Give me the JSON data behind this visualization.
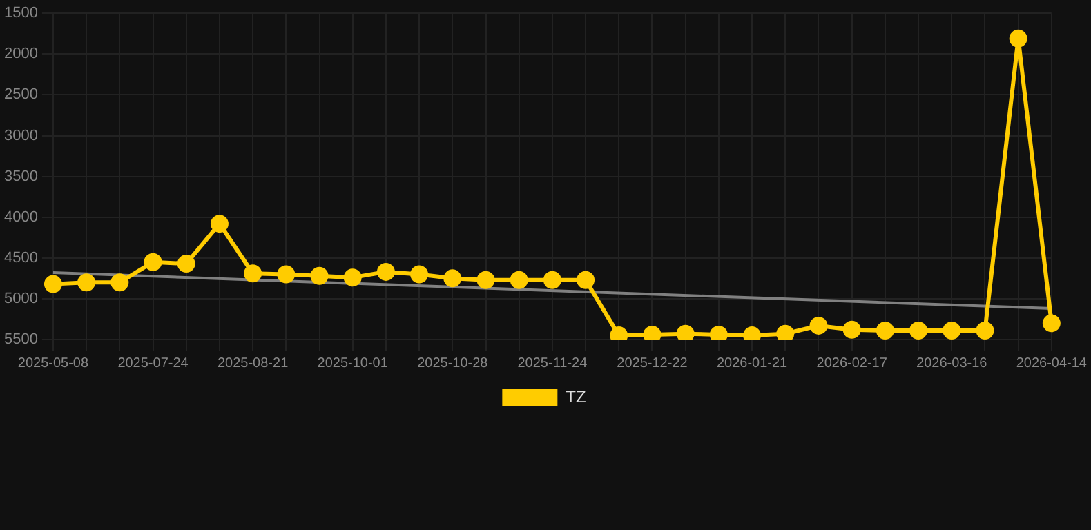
{
  "chart_data": {
    "type": "line",
    "categories": [
      "2025-05-08",
      null,
      null,
      "2025-07-24",
      null,
      null,
      "2025-08-21",
      null,
      null,
      "2025-10-01",
      null,
      null,
      "2025-10-28",
      null,
      null,
      "2025-11-24",
      null,
      null,
      "2025-12-22",
      null,
      null,
      "2026-01-21",
      null,
      null,
      "2026-02-17",
      null,
      null,
      "2026-03-16",
      null,
      null,
      "2026-04-14"
    ],
    "series": [
      {
        "name": "TZ",
        "color": "#ffcc00",
        "values": [
          4820,
          4800,
          4800,
          4550,
          4570,
          4080,
          4690,
          4700,
          4720,
          4740,
          4670,
          4700,
          4750,
          4770,
          4770,
          4770,
          4770,
          5450,
          5440,
          5430,
          5440,
          5450,
          5430,
          5330,
          5380,
          5390,
          5390,
          5390,
          5390,
          1810,
          5300
        ],
        "marker": "circle"
      },
      {
        "color": "#808080",
        "marker": "none",
        "values": [
          4680,
          null,
          null,
          null,
          null,
          null,
          null,
          null,
          null,
          null,
          null,
          null,
          null,
          null,
          null,
          null,
          null,
          null,
          null,
          null,
          null,
          null,
          null,
          null,
          null,
          null,
          null,
          null,
          null,
          null,
          5120
        ]
      }
    ],
    "ylim": [
      5500,
      1500
    ],
    "yticks": [
      1500,
      2000,
      2500,
      3000,
      3500,
      4000,
      4500,
      5000,
      5500
    ],
    "grid": true,
    "legend": "bottom"
  }
}
